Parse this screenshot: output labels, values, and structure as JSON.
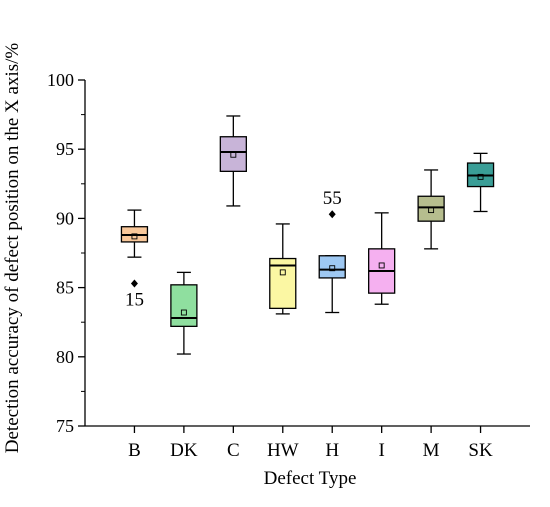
{
  "chart_data": {
    "type": "box",
    "xlabel": "Defect Type",
    "ylabel": "Detection accuracy of defect position on the X axis/%",
    "ylim": [
      75,
      100
    ],
    "yticks": [
      75,
      80,
      85,
      90,
      95,
      100
    ],
    "categories": [
      "B",
      "DK",
      "C",
      "HW",
      "H",
      "I",
      "M",
      "SK"
    ],
    "boxes": [
      {
        "category": "B",
        "color": "#f8c79a",
        "whisker_low": 87.2,
        "q1": 88.3,
        "median": 88.8,
        "q3": 89.4,
        "whisker_high": 90.6,
        "mean": 88.7,
        "outliers": [
          {
            "value": 85.3,
            "label": "15"
          }
        ]
      },
      {
        "category": "DK",
        "color": "#8fdf9f",
        "whisker_low": 80.2,
        "q1": 82.2,
        "median": 82.8,
        "q3": 85.2,
        "whisker_high": 86.1,
        "mean": 83.2,
        "outliers": []
      },
      {
        "category": "C",
        "color": "#c8b4d8",
        "whisker_low": 90.9,
        "q1": 93.4,
        "median": 94.8,
        "q3": 95.9,
        "whisker_high": 97.4,
        "mean": 94.6,
        "outliers": []
      },
      {
        "category": "HW",
        "color": "#fbf7a3",
        "whisker_low": 83.1,
        "q1": 83.5,
        "median": 86.6,
        "q3": 87.1,
        "whisker_high": 89.6,
        "mean": 86.1,
        "outliers": []
      },
      {
        "category": "H",
        "color": "#9ec8f2",
        "whisker_low": 83.2,
        "q1": 85.7,
        "median": 86.3,
        "q3": 87.3,
        "whisker_high": 87.3,
        "mean": 86.4,
        "outliers": [
          {
            "value": 90.3,
            "label": "55"
          }
        ]
      },
      {
        "category": "I",
        "color": "#f5b0f0",
        "whisker_low": 83.8,
        "q1": 84.6,
        "median": 86.2,
        "q3": 87.8,
        "whisker_high": 90.4,
        "mean": 86.6,
        "outliers": []
      },
      {
        "category": "M",
        "color": "#b6bd8e",
        "whisker_low": 87.8,
        "q1": 89.8,
        "median": 90.8,
        "q3": 91.6,
        "whisker_high": 93.5,
        "mean": 90.6,
        "outliers": []
      },
      {
        "category": "SK",
        "color": "#3a9e97",
        "whisker_low": 90.5,
        "q1": 92.3,
        "median": 93.1,
        "q3": 94.0,
        "whisker_high": 94.7,
        "mean": 93.0,
        "outliers": []
      }
    ],
    "grid": false,
    "legend": "none"
  }
}
